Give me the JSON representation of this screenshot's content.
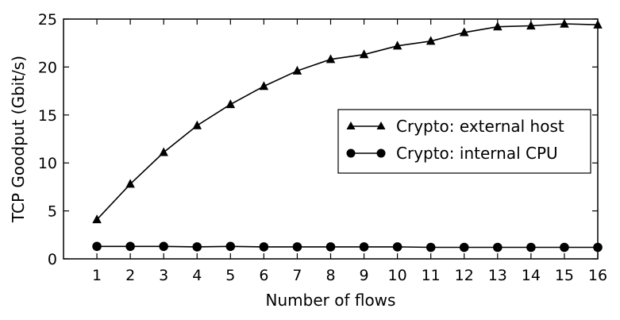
{
  "chart_data": {
    "type": "line",
    "xlabel": "Number of flows",
    "ylabel": "TCP Goodput (Gbit/s)",
    "xlim": [
      0,
      16
    ],
    "ylim": [
      0,
      25
    ],
    "x_ticks": [
      1,
      2,
      3,
      4,
      5,
      6,
      7,
      8,
      9,
      10,
      11,
      12,
      13,
      14,
      15,
      16
    ],
    "y_ticks": [
      0,
      5,
      10,
      15,
      20,
      25
    ],
    "grid": false,
    "legend_position": "right",
    "x": [
      1,
      2,
      3,
      4,
      5,
      6,
      7,
      8,
      9,
      10,
      11,
      12,
      13,
      14,
      15,
      16
    ],
    "series": [
      {
        "name": "Crypto: external host",
        "marker": "triangle",
        "color": "#000000",
        "values": [
          4.1,
          7.8,
          11.1,
          13.9,
          16.1,
          18.0,
          19.6,
          20.8,
          21.3,
          22.2,
          22.7,
          23.6,
          24.2,
          24.3,
          24.5,
          24.4
        ]
      },
      {
        "name": "Crypto: internal CPU",
        "marker": "circle",
        "color": "#000000",
        "values": [
          1.3,
          1.3,
          1.3,
          1.25,
          1.3,
          1.25,
          1.25,
          1.25,
          1.25,
          1.25,
          1.2,
          1.2,
          1.2,
          1.2,
          1.2,
          1.2
        ]
      }
    ]
  }
}
